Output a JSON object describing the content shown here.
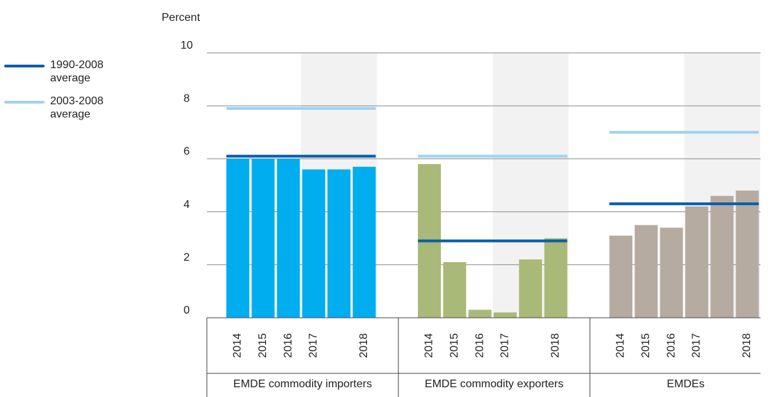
{
  "chart_data": {
    "type": "bar",
    "y_label": "Percent",
    "ylim": [
      0,
      10
    ],
    "yticks": [
      0,
      2,
      4,
      6,
      8,
      10
    ],
    "grid": true,
    "groups": [
      {
        "name": "EMDE commodity importers",
        "color": "#00aeef",
        "categories": [
          "2014",
          "2015",
          "2016",
          "2017",
          null,
          "2018"
        ],
        "values": [
          6.0,
          6.0,
          6.0,
          5.6,
          5.6,
          5.7
        ]
      },
      {
        "name": "EMDE commodity exporters",
        "color": "#a9b977",
        "categories": [
          "2014",
          "2015",
          "2016",
          "2017",
          null,
          "2018"
        ],
        "values": [
          5.8,
          2.1,
          0.3,
          0.2,
          2.2,
          3.0
        ]
      },
      {
        "name": "EMDEs",
        "color": "#b5aba0",
        "categories": [
          "2014",
          "2015",
          "2016",
          "2017",
          null,
          "2018"
        ],
        "values": [
          3.1,
          3.5,
          3.4,
          4.2,
          4.6,
          4.8
        ]
      }
    ],
    "series": [
      {
        "name": "1990-2008 average",
        "color": "#0a5ea8",
        "values": [
          6.1,
          2.9,
          4.3
        ]
      },
      {
        "name": "2003-2008 average",
        "color": "#9fd3f0",
        "values": [
          7.9,
          6.1,
          7.0
        ]
      }
    ]
  }
}
